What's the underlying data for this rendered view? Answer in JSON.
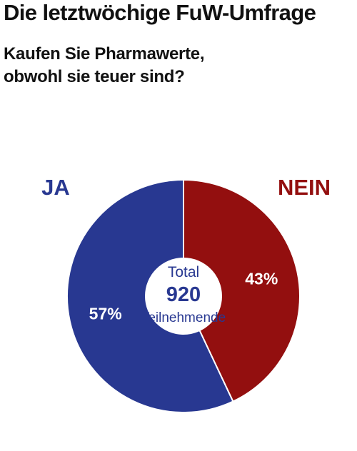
{
  "header": {
    "title": "Die letztwöchige FuW-Umfrage",
    "question_line1": "Kaufen Sie Pharmawerte,",
    "question_line2": "obwohl sie teuer sind?"
  },
  "center": {
    "top": "Total",
    "value": "920",
    "bottom": "Teilnehmende"
  },
  "chart_data": {
    "type": "pie",
    "title": "Kaufen Sie Pharmawerte, obwohl sie teuer sind?",
    "total": 920,
    "slices": [
      {
        "label": "JA",
        "value": 57,
        "display": "57%",
        "color": "#283891"
      },
      {
        "label": "NEIN",
        "value": 43,
        "display": "43%",
        "color": "#930f0f"
      }
    ],
    "start_angle_deg": 0,
    "direction": "counterclockwise-from-top",
    "donut": true
  }
}
